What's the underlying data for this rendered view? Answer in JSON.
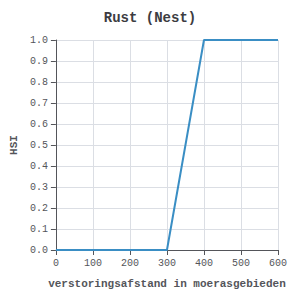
{
  "chart_data": {
    "type": "line",
    "title": "Rust (Nest)",
    "xlabel": "verstoringsafstand in moerasgebieden",
    "ylabel": "HSI",
    "x": [
      0,
      300,
      400,
      600
    ],
    "values": [
      0.0,
      0.0,
      1.0,
      1.0
    ],
    "color": "#3a8ec4",
    "xlim": [
      0,
      600
    ],
    "ylim": [
      0.0,
      1.0
    ],
    "xticks": [
      0,
      100,
      200,
      300,
      400,
      500,
      600
    ],
    "yticks": [
      {
        "value": 0,
        "label": "0.0"
      },
      0.1,
      0.2,
      0.3,
      0.4,
      0.5,
      0.6,
      0.7,
      0.8,
      0.9,
      {
        "value": 1,
        "label": "1.0"
      }
    ],
    "grid": true
  }
}
